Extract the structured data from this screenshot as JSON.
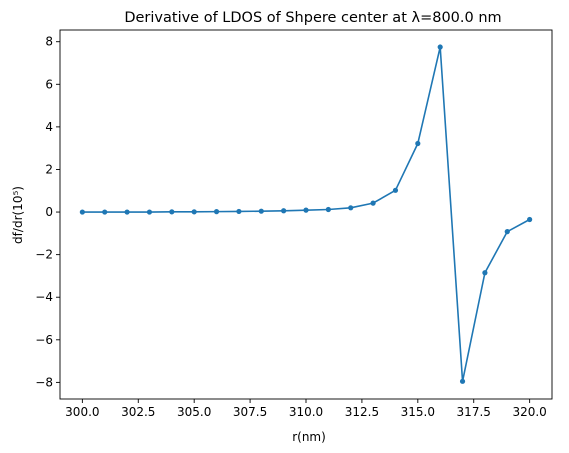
{
  "chart_data": {
    "type": "line",
    "title": "Derivative of LDOS of Shpere center at λ=800.0 nm",
    "xlabel": "r(nm)",
    "ylabel": "df/dr(10⁵)",
    "xlim": [
      299.0,
      321.0
    ],
    "ylim": [
      -8.78,
      8.55
    ],
    "xticks": [
      300.0,
      302.5,
      305.0,
      307.5,
      310.0,
      312.5,
      315.0,
      317.5,
      320.0
    ],
    "xtick_labels": [
      "300.0",
      "302.5",
      "305.0",
      "307.5",
      "310.0",
      "312.5",
      "315.0",
      "317.5",
      "320.0"
    ],
    "yticks": [
      -8,
      -6,
      -4,
      -2,
      0,
      2,
      4,
      6,
      8
    ],
    "ytick_labels": [
      "−8",
      "−6",
      "−4",
      "−2",
      "0",
      "2",
      "4",
      "6",
      "8"
    ],
    "grid": false,
    "color": "#1f77b4",
    "series": [
      {
        "x": [
          300,
          301,
          302,
          303,
          304,
          305,
          306,
          307,
          308,
          309,
          310,
          311,
          312,
          313,
          314,
          315,
          316,
          317,
          318,
          319,
          320
        ],
        "y": [
          0.0,
          0.0,
          0.0,
          0.0,
          0.01,
          0.01,
          0.02,
          0.03,
          0.04,
          0.06,
          0.09,
          0.12,
          0.2,
          0.42,
          1.02,
          3.22,
          7.75,
          -7.95,
          -2.85,
          -0.92,
          -0.35
        ]
      }
    ]
  }
}
